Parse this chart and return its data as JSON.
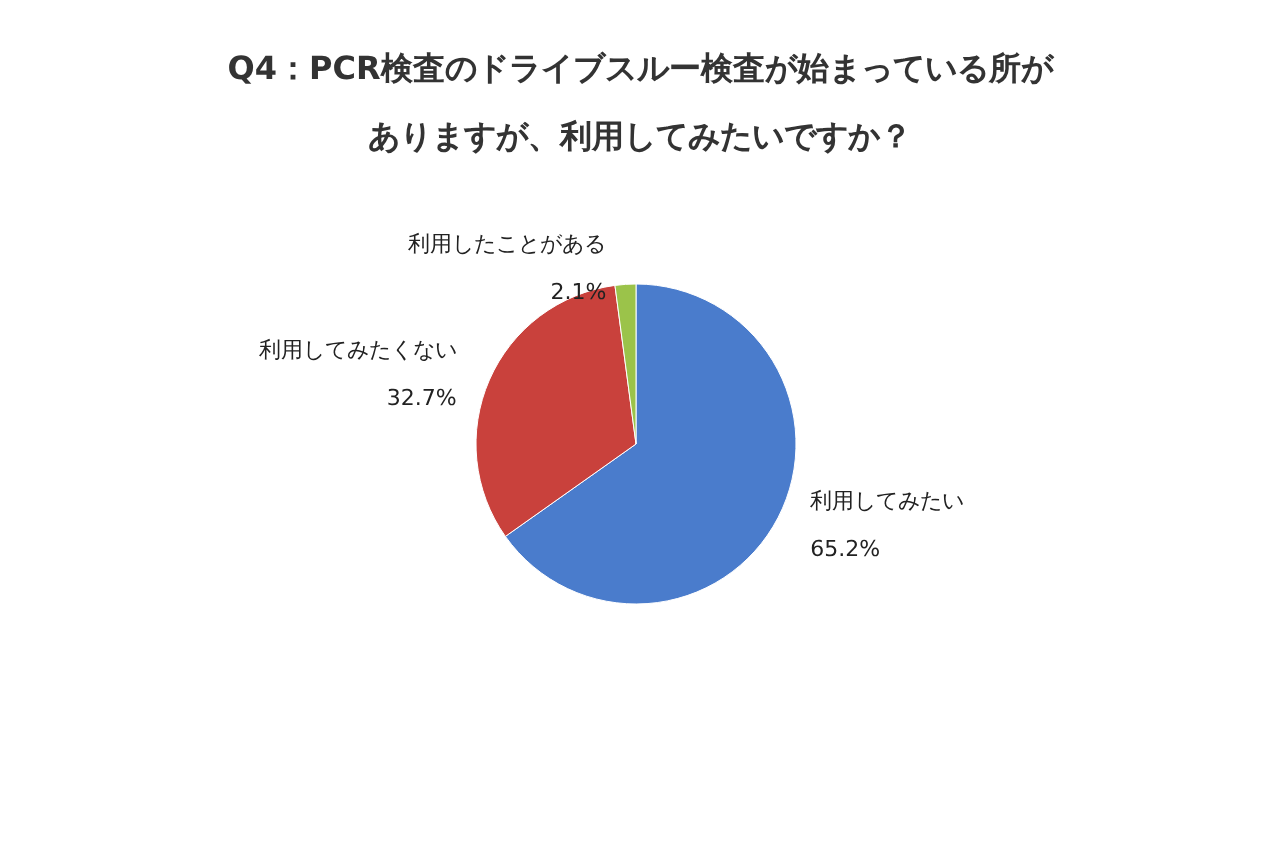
{
  "chart_data": {
    "type": "pie",
    "title": "Q4：PCR検査のドライブスルー検査が始まっている所がありますが、利用してみたいですか？",
    "categories": [
      "利用してみたい",
      "利用してみたくない",
      "利用したことがある"
    ],
    "values": [
      65.2,
      32.7,
      2.1
    ],
    "colors": [
      "#4a7ccc",
      "#c9413c",
      "#9bc34a"
    ],
    "value_labels": [
      "65.2%",
      "32.7%",
      "2.1%"
    ],
    "legend": false
  }
}
